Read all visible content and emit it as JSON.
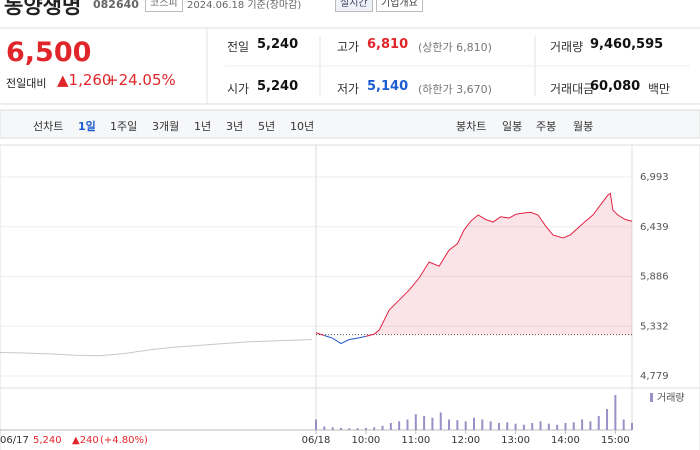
{
  "header": {
    "name": "동양생명",
    "code": "082640",
    "market": "코스피",
    "date": "2024.06.18 기준(장마감)",
    "realtime": "실시간",
    "company_info": "기업개요"
  },
  "quote": {
    "price": "6,500",
    "change_label": "전일대비",
    "change": "▲1,260",
    "rate": "+24.05%"
  },
  "stats": [
    {
      "label": "전일",
      "value": "5,240"
    },
    {
      "label": "고가",
      "value": "6,810",
      "note": "(상한가 6,810)"
    },
    {
      "label": "거래량",
      "value": "9,460,595"
    },
    {
      "label": "시가",
      "value": "5,240"
    },
    {
      "label": "저가",
      "value": "5,140",
      "note": "(하한가 3,670)"
    },
    {
      "label": "거래대금",
      "value": "60,080",
      "unit": "백만"
    }
  ],
  "tabs": {
    "line_label": "선차트",
    "line": [
      "1일",
      "1주일",
      "3개월",
      "1년",
      "3년",
      "5년",
      "10년"
    ],
    "candle_label": "봉차트",
    "candle": [
      "일봉",
      "주봉",
      "월봉"
    ]
  },
  "chart_data": {
    "type": "line",
    "ylim": [
      4679,
      7293
    ],
    "yticks": [
      {
        "value": 6993,
        "label": "6,993"
      },
      {
        "value": 6439,
        "label": "6,439"
      },
      {
        "value": 5886,
        "label": "5,886"
      },
      {
        "value": 5332,
        "label": "5,332"
      },
      {
        "value": 4779,
        "label": "4,779"
      }
    ],
    "xlim": [
      -380,
      380
    ],
    "xticks": [
      {
        "value": -380,
        "label": "06/17"
      },
      {
        "value": 0,
        "label": "06/18"
      },
      {
        "value": 60,
        "label": "10:00"
      },
      {
        "value": 120,
        "label": "11:00"
      },
      {
        "value": 180,
        "label": "12:00"
      },
      {
        "value": 240,
        "label": "13:00"
      },
      {
        "value": 300,
        "label": "14:00"
      },
      {
        "value": 360,
        "label": "15:00"
      }
    ],
    "prev_close": 5240,
    "series": [
      {
        "color": "#c8c8c8",
        "x": [
          -380,
          -350,
          -320,
          -290,
          -260,
          -230,
          -200,
          -170,
          -140,
          -110,
          -80,
          -50,
          -20,
          -5
        ],
        "values": [
          5040,
          5035,
          5025,
          5010,
          5005,
          5030,
          5070,
          5100,
          5120,
          5140,
          5160,
          5170,
          5180,
          5185
        ]
      },
      {
        "color": "#e12343",
        "below_color": "#1e5aca",
        "x": [
          0,
          10,
          20,
          30,
          40,
          50,
          60,
          70,
          76,
          88,
          100,
          112,
          124,
          136,
          148,
          160,
          170,
          178,
          186,
          195,
          204,
          213,
          222,
          232,
          241,
          250,
          258,
          267,
          276,
          285,
          297,
          306,
          315,
          324,
          333,
          342,
          351,
          354,
          357,
          363,
          372,
          380
        ],
        "values": [
          5260,
          5230,
          5200,
          5140,
          5185,
          5200,
          5220,
          5245,
          5290,
          5513,
          5624,
          5735,
          5869,
          6047,
          6000,
          6180,
          6250,
          6403,
          6500,
          6570,
          6520,
          6492,
          6550,
          6536,
          6580,
          6592,
          6600,
          6570,
          6450,
          6348,
          6314,
          6350,
          6425,
          6500,
          6570,
          6680,
          6792,
          6810,
          6625,
          6570,
          6520,
          6500
        ]
      }
    ],
    "volume": {
      "name": "거래량",
      "color": "#9a8fc7",
      "x": [
        0,
        10,
        20,
        30,
        40,
        50,
        60,
        70,
        80,
        90,
        100,
        110,
        120,
        130,
        140,
        150,
        160,
        170,
        180,
        190,
        200,
        210,
        220,
        230,
        240,
        250,
        260,
        270,
        280,
        290,
        300,
        310,
        320,
        330,
        340,
        350,
        360,
        370,
        380
      ],
      "values": [
        30,
        10,
        8,
        6,
        5,
        5,
        6,
        8,
        12,
        20,
        25,
        30,
        45,
        40,
        35,
        50,
        30,
        28,
        25,
        35,
        30,
        25,
        20,
        22,
        18,
        15,
        20,
        25,
        18,
        15,
        20,
        22,
        30,
        25,
        40,
        60,
        100,
        30,
        20
      ]
    },
    "hover_info": {
      "price": "5,240",
      "change": "▲240",
      "rate": "(+4.80%)"
    }
  }
}
